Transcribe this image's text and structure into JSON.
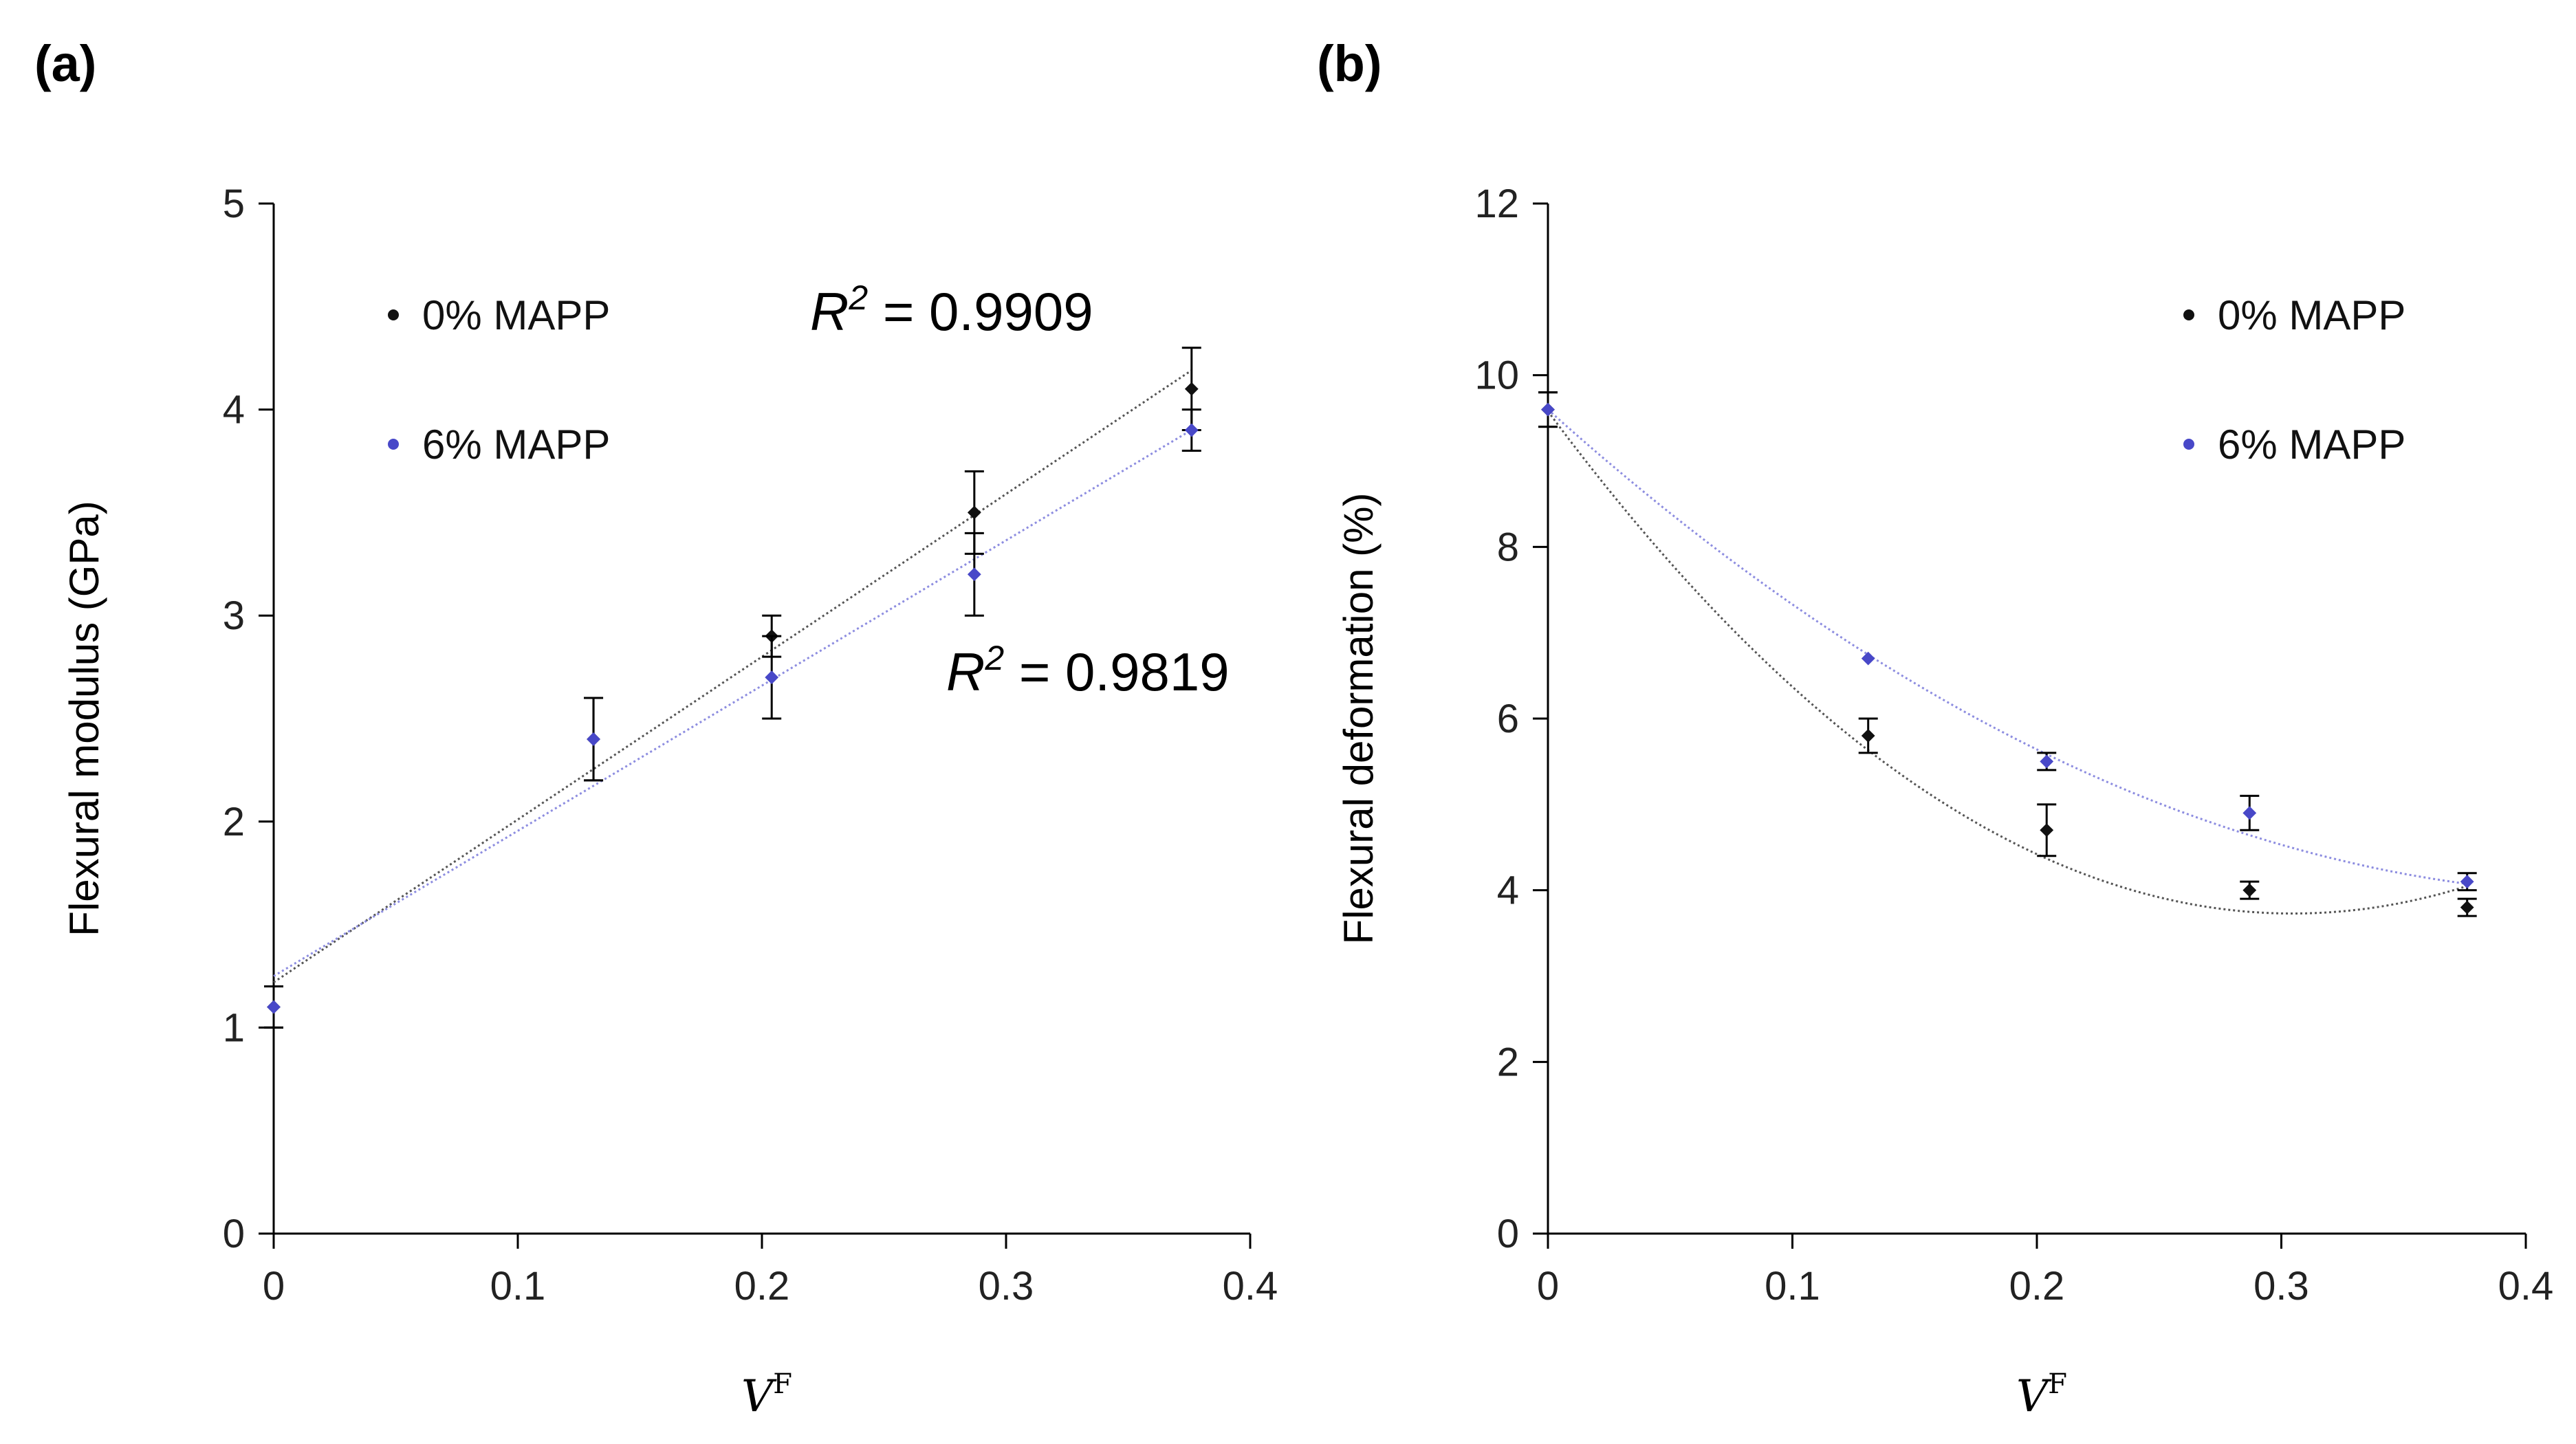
{
  "colors": {
    "series_0": "#111111",
    "series_6": "#4848c8",
    "fit_0": "#555555",
    "fit_6": "#8d8de0"
  },
  "chart_data": [
    {
      "type": "scatter",
      "panel_label": "(a)",
      "title": "",
      "xlabel_main": "V",
      "xlabel_sup": "F",
      "ylabel": "Flexural modulus (GPa)",
      "xlim": [
        0,
        0.4
      ],
      "ylim": [
        0,
        5
      ],
      "x_ticks": [
        0,
        0.1,
        0.2,
        0.3,
        0.4
      ],
      "x_tick_labels": [
        "0",
        "0.1",
        "0.2",
        "0.3",
        "0.4"
      ],
      "y_ticks": [
        0,
        1,
        2,
        3,
        4,
        5
      ],
      "y_tick_labels": [
        "0",
        "1",
        "2",
        "3",
        "4",
        "5"
      ],
      "legend_position": "top-left",
      "series": [
        {
          "name": "0% MAPP",
          "color_key": "series_0",
          "x": [
            0,
            0.131,
            0.204,
            0.287,
            0.376
          ],
          "y": [
            1.1,
            2.4,
            2.9,
            3.5,
            4.1
          ],
          "err": [
            0.1,
            0.2,
            0.1,
            0.2,
            0.2
          ],
          "fit": {
            "kind": "linear",
            "coeffs": [
              1.22,
              7.9
            ],
            "range": [
              0,
              0.376
            ]
          },
          "r2_text": {
            "r": "R",
            "sup": "2",
            "rest": " = 0.9909",
            "placement": "upper-right"
          }
        },
        {
          "name": "6% MAPP",
          "color_key": "series_6",
          "x": [
            0,
            0.131,
            0.204,
            0.287,
            0.376
          ],
          "y": [
            1.1,
            2.4,
            2.7,
            3.2,
            3.9
          ],
          "err": [
            0.1,
            0.2,
            0.2,
            0.2,
            0.1
          ],
          "fit": {
            "kind": "linear",
            "coeffs": [
              1.25,
              7.05
            ],
            "range": [
              0,
              0.376
            ]
          },
          "r2_text": {
            "r": "R",
            "sup": "2",
            "rest": " = 0.9819",
            "placement": "middle-right"
          }
        }
      ]
    },
    {
      "type": "scatter",
      "panel_label": "(b)",
      "title": "",
      "xlabel_main": "V",
      "xlabel_sup": "F",
      "ylabel": "Flexural deformation (%)",
      "xlim": [
        0,
        0.4
      ],
      "ylim": [
        0,
        12
      ],
      "x_ticks": [
        0,
        0.1,
        0.2,
        0.3,
        0.4
      ],
      "x_tick_labels": [
        "0",
        "0.1",
        "0.2",
        "0.3",
        "0.4"
      ],
      "y_ticks": [
        0,
        2,
        4,
        6,
        8,
        10,
        12
      ],
      "y_tick_labels": [
        "0",
        "2",
        "4",
        "6",
        "8",
        "10",
        "12"
      ],
      "legend_position": "top-right",
      "series": [
        {
          "name": "0% MAPP",
          "color_key": "series_0",
          "x": [
            0,
            0.131,
            0.204,
            0.287,
            0.376
          ],
          "y": [
            9.6,
            5.8,
            4.7,
            4.0,
            3.8
          ],
          "err": [
            0.2,
            0.2,
            0.3,
            0.1,
            0.1
          ],
          "fit": {
            "kind": "poly2",
            "coeffs": [
              9.58,
              -38.4,
              63.0
            ],
            "range": [
              0,
              0.376
            ]
          }
        },
        {
          "name": "6% MAPP",
          "color_key": "series_6",
          "x": [
            0,
            0.131,
            0.204,
            0.287,
            0.376
          ],
          "y": [
            9.6,
            6.7,
            5.5,
            4.9,
            4.1
          ],
          "err": [
            0.2,
            0.0,
            0.1,
            0.2,
            0.1
          ],
          "fit": {
            "kind": "poly2",
            "coeffs": [
              9.6,
              -25.6,
              29.0
            ],
            "range": [
              0,
              0.376
            ]
          }
        }
      ]
    }
  ]
}
